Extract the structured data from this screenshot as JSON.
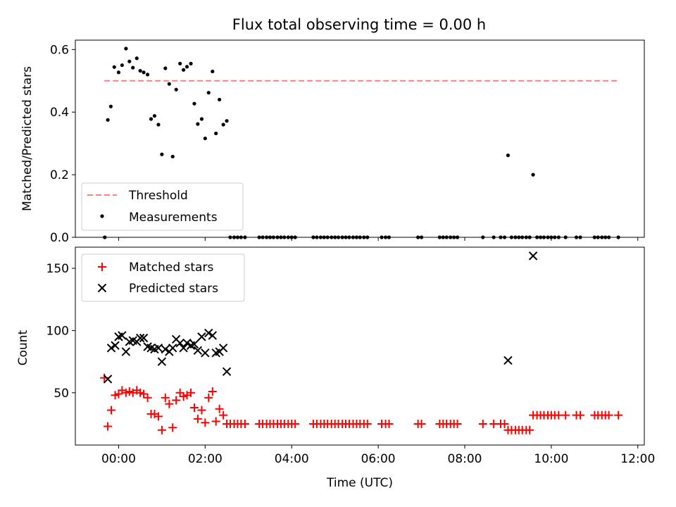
{
  "figure": {
    "title": "Flux total observing time = 0.00 h"
  },
  "chart_data": [
    {
      "type": "scatter",
      "panel": "top",
      "ylabel": "Matched/Predicted stars",
      "ylim": [
        0,
        0.63
      ],
      "yticks": [
        "0.0",
        "0.2",
        "0.4",
        "0.6"
      ],
      "ytick_values": [
        0,
        0.2,
        0.4,
        0.6
      ],
      "legend_placement": "lower-left",
      "threshold": {
        "name": "Threshold",
        "y": 0.5,
        "x_start": -0.33,
        "x_end": 11.55,
        "color": "#ff7f7f"
      },
      "series": [
        {
          "name": "Measurements",
          "color": "#000000",
          "marker": "dot",
          "points": [
            [
              -0.32,
              0.0
            ],
            [
              -0.25,
              0.375
            ],
            [
              -0.18,
              0.418
            ],
            [
              -0.1,
              0.544
            ],
            [
              0.0,
              0.527
            ],
            [
              0.08,
              0.55
            ],
            [
              0.17,
              0.603
            ],
            [
              0.25,
              0.562
            ],
            [
              0.33,
              0.542
            ],
            [
              0.42,
              0.572
            ],
            [
              0.5,
              0.532
            ],
            [
              0.58,
              0.527
            ],
            [
              0.67,
              0.52
            ],
            [
              0.75,
              0.378
            ],
            [
              0.83,
              0.388
            ],
            [
              0.92,
              0.36
            ],
            [
              1.0,
              0.265
            ],
            [
              1.08,
              0.54
            ],
            [
              1.17,
              0.49
            ],
            [
              1.25,
              0.258
            ],
            [
              1.33,
              0.472
            ],
            [
              1.42,
              0.555
            ],
            [
              1.5,
              0.535
            ],
            [
              1.58,
              0.545
            ],
            [
              1.67,
              0.555
            ],
            [
              1.75,
              0.427
            ],
            [
              1.83,
              0.362
            ],
            [
              1.92,
              0.378
            ],
            [
              2.0,
              0.316
            ],
            [
              2.08,
              0.462
            ],
            [
              2.17,
              0.53
            ],
            [
              2.25,
              0.332
            ],
            [
              2.33,
              0.44
            ],
            [
              2.42,
              0.36
            ],
            [
              2.5,
              0.372
            ],
            [
              2.58,
              0.0
            ],
            [
              2.67,
              0.0
            ],
            [
              2.75,
              0.0
            ],
            [
              2.83,
              0.0
            ],
            [
              2.92,
              0.0
            ],
            [
              3.25,
              0.0
            ],
            [
              3.33,
              0.0
            ],
            [
              3.42,
              0.0
            ],
            [
              3.5,
              0.0
            ],
            [
              3.58,
              0.0
            ],
            [
              3.67,
              0.0
            ],
            [
              3.75,
              0.0
            ],
            [
              3.83,
              0.0
            ],
            [
              3.92,
              0.0
            ],
            [
              4.0,
              0.0
            ],
            [
              4.08,
              0.0
            ],
            [
              4.5,
              0.0
            ],
            [
              4.58,
              0.0
            ],
            [
              4.67,
              0.0
            ],
            [
              4.75,
              0.0
            ],
            [
              4.83,
              0.0
            ],
            [
              4.92,
              0.0
            ],
            [
              5.0,
              0.0
            ],
            [
              5.08,
              0.0
            ],
            [
              5.17,
              0.0
            ],
            [
              5.25,
              0.0
            ],
            [
              5.33,
              0.0
            ],
            [
              5.42,
              0.0
            ],
            [
              5.5,
              0.0
            ],
            [
              5.58,
              0.0
            ],
            [
              5.67,
              0.0
            ],
            [
              5.75,
              0.0
            ],
            [
              6.08,
              0.0
            ],
            [
              6.17,
              0.0
            ],
            [
              6.25,
              0.0
            ],
            [
              6.92,
              0.0
            ],
            [
              7.0,
              0.0
            ],
            [
              7.42,
              0.0
            ],
            [
              7.5,
              0.0
            ],
            [
              7.58,
              0.0
            ],
            [
              7.67,
              0.0
            ],
            [
              7.75,
              0.0
            ],
            [
              7.83,
              0.0
            ],
            [
              8.42,
              0.0
            ],
            [
              8.67,
              0.0
            ],
            [
              8.83,
              0.0
            ],
            [
              8.92,
              0.0
            ],
            [
              9.0,
              0.262
            ],
            [
              9.08,
              0.0
            ],
            [
              9.17,
              0.0
            ],
            [
              9.25,
              0.0
            ],
            [
              9.33,
              0.0
            ],
            [
              9.42,
              0.0
            ],
            [
              9.5,
              0.0
            ],
            [
              9.58,
              0.2
            ],
            [
              9.67,
              0.0
            ],
            [
              9.75,
              0.0
            ],
            [
              9.83,
              0.0
            ],
            [
              9.92,
              0.0
            ],
            [
              10.0,
              0.0
            ],
            [
              10.08,
              0.0
            ],
            [
              10.17,
              0.0
            ],
            [
              10.33,
              0.0
            ],
            [
              10.58,
              0.0
            ],
            [
              10.67,
              0.0
            ],
            [
              11.0,
              0.0
            ],
            [
              11.08,
              0.0
            ],
            [
              11.17,
              0.0
            ],
            [
              11.25,
              0.0
            ],
            [
              11.33,
              0.0
            ],
            [
              11.55,
              0.0
            ]
          ]
        }
      ]
    },
    {
      "type": "scatter",
      "panel": "bottom",
      "xlabel": "Time (UTC)",
      "ylabel": "Count",
      "xlim": [
        -1.0,
        12.15
      ],
      "ylim": [
        8,
        167
      ],
      "xticks": [
        "00:00",
        "02:00",
        "04:00",
        "06:00",
        "08:00",
        "10:00",
        "12:00"
      ],
      "xtick_values": [
        0,
        2,
        4,
        6,
        8,
        10,
        12
      ],
      "yticks": [
        "50",
        "100",
        "150"
      ],
      "ytick_values": [
        50,
        100,
        150
      ],
      "legend_placement": "upper-left",
      "series": [
        {
          "name": "Matched stars",
          "color": "#ff0000",
          "marker": "plus",
          "points": [
            [
              -0.33,
              62
            ],
            [
              -0.25,
              23
            ],
            [
              -0.17,
              36
            ],
            [
              -0.08,
              48
            ],
            [
              0.0,
              49
            ],
            [
              0.08,
              52
            ],
            [
              0.17,
              50
            ],
            [
              0.25,
              51
            ],
            [
              0.33,
              50
            ],
            [
              0.42,
              52
            ],
            [
              0.5,
              50
            ],
            [
              0.58,
              49
            ],
            [
              0.67,
              46
            ],
            [
              0.75,
              33
            ],
            [
              0.83,
              33
            ],
            [
              0.92,
              31
            ],
            [
              1.0,
              20
            ],
            [
              1.08,
              46
            ],
            [
              1.17,
              41
            ],
            [
              1.25,
              22
            ],
            [
              1.33,
              44
            ],
            [
              1.42,
              50
            ],
            [
              1.5,
              47
            ],
            [
              1.58,
              48
            ],
            [
              1.67,
              50
            ],
            [
              1.75,
              38
            ],
            [
              1.83,
              29
            ],
            [
              1.92,
              36
            ],
            [
              2.0,
              26
            ],
            [
              2.08,
              46
            ],
            [
              2.17,
              51
            ],
            [
              2.25,
              27
            ],
            [
              2.33,
              37
            ],
            [
              2.42,
              32
            ],
            [
              2.5,
              25
            ],
            [
              2.58,
              25
            ],
            [
              2.67,
              25
            ],
            [
              2.75,
              25
            ],
            [
              2.83,
              25
            ],
            [
              2.92,
              25
            ],
            [
              3.25,
              25
            ],
            [
              3.33,
              25
            ],
            [
              3.42,
              25
            ],
            [
              3.5,
              25
            ],
            [
              3.58,
              25
            ],
            [
              3.67,
              25
            ],
            [
              3.75,
              25
            ],
            [
              3.83,
              25
            ],
            [
              3.92,
              25
            ],
            [
              4.0,
              25
            ],
            [
              4.08,
              25
            ],
            [
              4.5,
              25
            ],
            [
              4.58,
              25
            ],
            [
              4.67,
              25
            ],
            [
              4.75,
              25
            ],
            [
              4.83,
              25
            ],
            [
              4.92,
              25
            ],
            [
              5.0,
              25
            ],
            [
              5.08,
              25
            ],
            [
              5.17,
              25
            ],
            [
              5.25,
              25
            ],
            [
              5.33,
              25
            ],
            [
              5.42,
              25
            ],
            [
              5.5,
              25
            ],
            [
              5.58,
              25
            ],
            [
              5.67,
              25
            ],
            [
              5.75,
              25
            ],
            [
              6.08,
              25
            ],
            [
              6.17,
              25
            ],
            [
              6.25,
              25
            ],
            [
              6.92,
              25
            ],
            [
              7.0,
              25
            ],
            [
              7.42,
              25
            ],
            [
              7.5,
              25
            ],
            [
              7.58,
              25
            ],
            [
              7.67,
              25
            ],
            [
              7.75,
              25
            ],
            [
              7.83,
              25
            ],
            [
              8.42,
              25
            ],
            [
              8.67,
              25
            ],
            [
              8.83,
              25
            ],
            [
              8.92,
              25
            ],
            [
              9.0,
              20
            ],
            [
              9.08,
              20
            ],
            [
              9.17,
              20
            ],
            [
              9.25,
              20
            ],
            [
              9.33,
              20
            ],
            [
              9.42,
              20
            ],
            [
              9.5,
              20
            ],
            [
              9.58,
              32
            ],
            [
              9.67,
              32
            ],
            [
              9.75,
              32
            ],
            [
              9.83,
              32
            ],
            [
              9.92,
              32
            ],
            [
              10.0,
              32
            ],
            [
              10.08,
              32
            ],
            [
              10.17,
              32
            ],
            [
              10.33,
              32
            ],
            [
              10.58,
              32
            ],
            [
              10.67,
              32
            ],
            [
              11.0,
              32
            ],
            [
              11.08,
              32
            ],
            [
              11.17,
              32
            ],
            [
              11.25,
              32
            ],
            [
              11.33,
              32
            ],
            [
              11.55,
              32
            ]
          ]
        },
        {
          "name": "Predicted stars",
          "color": "#000000",
          "marker": "x",
          "points": [
            [
              -0.25,
              61
            ],
            [
              -0.17,
              86
            ],
            [
              -0.08,
              88
            ],
            [
              0.0,
              95
            ],
            [
              0.08,
              96
            ],
            [
              0.17,
              83
            ],
            [
              0.25,
              91
            ],
            [
              0.33,
              92
            ],
            [
              0.42,
              91
            ],
            [
              0.5,
              94
            ],
            [
              0.58,
              94
            ],
            [
              0.67,
              87
            ],
            [
              0.75,
              86
            ],
            [
              0.83,
              85
            ],
            [
              0.92,
              86
            ],
            [
              1.0,
              75
            ],
            [
              1.08,
              85
            ],
            [
              1.17,
              83
            ],
            [
              1.25,
              86
            ],
            [
              1.33,
              93
            ],
            [
              1.42,
              90
            ],
            [
              1.5,
              86
            ],
            [
              1.58,
              90
            ],
            [
              1.67,
              88
            ],
            [
              1.75,
              89
            ],
            [
              1.83,
              84
            ],
            [
              1.92,
              95
            ],
            [
              2.0,
              82
            ],
            [
              2.08,
              98
            ],
            [
              2.17,
              96
            ],
            [
              2.25,
              82
            ],
            [
              2.33,
              83
            ],
            [
              2.42,
              86
            ],
            [
              2.5,
              67
            ],
            [
              9.0,
              76
            ],
            [
              9.58,
              160
            ]
          ]
        }
      ]
    }
  ]
}
